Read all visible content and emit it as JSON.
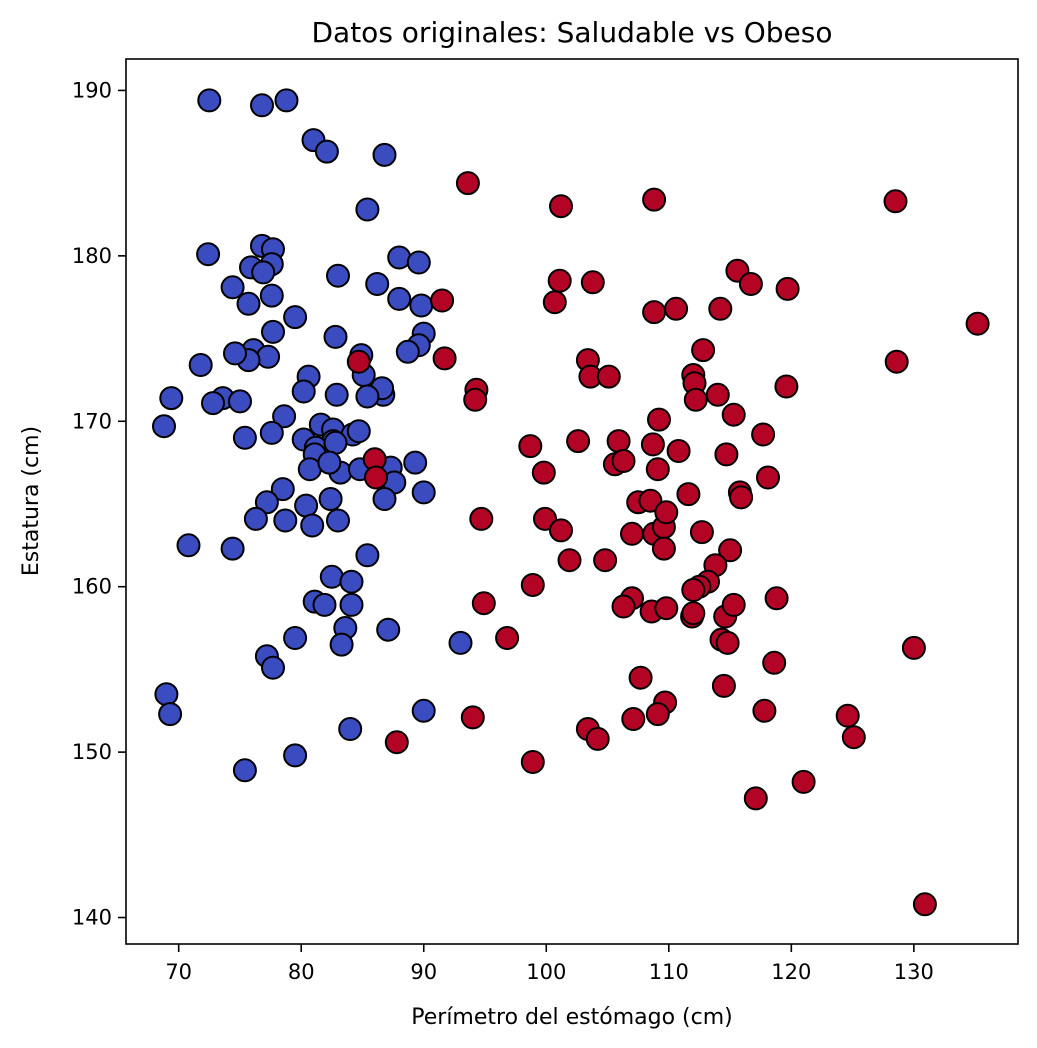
{
  "chart_data": {
    "type": "scatter",
    "title": "Datos originales: Saludable vs Obeso",
    "xlabel": "Perímetro del estómago (cm)",
    "ylabel": "Estatura (cm)",
    "xlim": [
      65.7,
      138.5
    ],
    "ylim": [
      138.4,
      191.9
    ],
    "xticks": [
      70,
      80,
      90,
      100,
      110,
      120,
      130
    ],
    "yticks": [
      140,
      150,
      160,
      170,
      180,
      190
    ],
    "grid": false,
    "legend": "none",
    "series": [
      {
        "color": "#3b4cc0",
        "points": [
          [
            72.5,
            189.4
          ],
          [
            76.8,
            189.1
          ],
          [
            78.8,
            189.4
          ],
          [
            81.0,
            187.0
          ],
          [
            82.1,
            186.3
          ],
          [
            86.8,
            186.1
          ],
          [
            85.4,
            182.8
          ],
          [
            72.4,
            180.1
          ],
          [
            76.8,
            180.6
          ],
          [
            77.7,
            180.4
          ],
          [
            75.9,
            179.3
          ],
          [
            77.6,
            179.5
          ],
          [
            76.9,
            179.0
          ],
          [
            88.0,
            179.9
          ],
          [
            89.6,
            179.6
          ],
          [
            83.0,
            178.8
          ],
          [
            86.2,
            178.3
          ],
          [
            74.4,
            178.1
          ],
          [
            77.6,
            177.6
          ],
          [
            75.7,
            177.1
          ],
          [
            88.0,
            177.4
          ],
          [
            89.8,
            177.0
          ],
          [
            79.5,
            176.3
          ],
          [
            77.7,
            175.4
          ],
          [
            82.8,
            175.1
          ],
          [
            90.0,
            175.3
          ],
          [
            89.6,
            174.6
          ],
          [
            88.7,
            174.2
          ],
          [
            76.1,
            174.3
          ],
          [
            77.3,
            173.9
          ],
          [
            75.7,
            173.7
          ],
          [
            74.6,
            174.1
          ],
          [
            71.8,
            173.4
          ],
          [
            84.9,
            174.0
          ],
          [
            85.1,
            172.8
          ],
          [
            80.6,
            172.7
          ],
          [
            80.2,
            171.8
          ],
          [
            86.7,
            171.6
          ],
          [
            86.6,
            172.0
          ],
          [
            85.4,
            171.5
          ],
          [
            82.9,
            171.6
          ],
          [
            69.4,
            171.4
          ],
          [
            73.6,
            171.4
          ],
          [
            72.8,
            171.1
          ],
          [
            75.0,
            171.2
          ],
          [
            78.6,
            170.3
          ],
          [
            68.8,
            169.7
          ],
          [
            75.4,
            169.0
          ],
          [
            77.6,
            169.3
          ],
          [
            80.2,
            168.9
          ],
          [
            81.6,
            169.8
          ],
          [
            82.6,
            169.5
          ],
          [
            84.2,
            169.2
          ],
          [
            84.7,
            169.4
          ],
          [
            82.6,
            168.8
          ],
          [
            81.2,
            168.4
          ],
          [
            81.1,
            168.0
          ],
          [
            82.8,
            168.7
          ],
          [
            83.2,
            166.9
          ],
          [
            80.7,
            167.1
          ],
          [
            82.3,
            167.5
          ],
          [
            84.8,
            167.1
          ],
          [
            87.3,
            167.2
          ],
          [
            89.3,
            167.5
          ],
          [
            87.6,
            166.3
          ],
          [
            86.8,
            165.3
          ],
          [
            90.0,
            165.7
          ],
          [
            78.5,
            165.9
          ],
          [
            77.2,
            165.1
          ],
          [
            82.4,
            165.3
          ],
          [
            80.4,
            164.9
          ],
          [
            76.3,
            164.1
          ],
          [
            78.7,
            164.0
          ],
          [
            80.9,
            163.7
          ],
          [
            83.0,
            164.0
          ],
          [
            70.8,
            162.5
          ],
          [
            74.4,
            162.3
          ],
          [
            85.4,
            161.9
          ],
          [
            82.5,
            160.6
          ],
          [
            84.1,
            160.3
          ],
          [
            81.1,
            159.1
          ],
          [
            81.9,
            158.9
          ],
          [
            84.1,
            158.9
          ],
          [
            83.6,
            157.5
          ],
          [
            87.1,
            157.4
          ],
          [
            83.3,
            156.5
          ],
          [
            79.5,
            156.9
          ],
          [
            77.2,
            155.8
          ],
          [
            77.7,
            155.1
          ],
          [
            93.0,
            156.6
          ],
          [
            69.0,
            153.5
          ],
          [
            69.3,
            152.3
          ],
          [
            90.0,
            152.5
          ],
          [
            84.0,
            151.4
          ],
          [
            79.5,
            149.8
          ],
          [
            75.4,
            148.9
          ]
        ]
      },
      {
        "color": "#b40426",
        "points": [
          [
            93.6,
            184.4
          ],
          [
            101.2,
            183.0
          ],
          [
            108.8,
            183.4
          ],
          [
            128.5,
            183.3
          ],
          [
            101.1,
            178.5
          ],
          [
            103.8,
            178.4
          ],
          [
            115.6,
            179.1
          ],
          [
            116.7,
            178.3
          ],
          [
            119.7,
            178.0
          ],
          [
            100.7,
            177.2
          ],
          [
            91.5,
            177.3
          ],
          [
            108.8,
            176.6
          ],
          [
            110.6,
            176.8
          ],
          [
            114.2,
            176.8
          ],
          [
            135.2,
            175.9
          ],
          [
            112.8,
            174.3
          ],
          [
            91.7,
            173.8
          ],
          [
            103.4,
            173.7
          ],
          [
            128.6,
            173.6
          ],
          [
            103.6,
            172.7
          ],
          [
            105.1,
            172.7
          ],
          [
            112.0,
            172.8
          ],
          [
            112.1,
            172.3
          ],
          [
            119.6,
            172.1
          ],
          [
            94.3,
            171.9
          ],
          [
            94.2,
            171.3
          ],
          [
            112.2,
            171.3
          ],
          [
            114.0,
            171.6
          ],
          [
            115.3,
            170.4
          ],
          [
            109.2,
            170.1
          ],
          [
            117.7,
            169.2
          ],
          [
            98.7,
            168.5
          ],
          [
            102.6,
            168.8
          ],
          [
            105.9,
            168.8
          ],
          [
            108.7,
            168.6
          ],
          [
            110.8,
            168.2
          ],
          [
            114.7,
            168.0
          ],
          [
            99.8,
            166.9
          ],
          [
            105.6,
            167.4
          ],
          [
            106.3,
            167.6
          ],
          [
            109.1,
            167.1
          ],
          [
            84.7,
            173.6
          ],
          [
            86.0,
            167.7
          ],
          [
            86.1,
            166.6
          ],
          [
            118.1,
            166.6
          ],
          [
            111.6,
            165.6
          ],
          [
            115.8,
            165.7
          ],
          [
            115.9,
            165.4
          ],
          [
            107.5,
            165.1
          ],
          [
            108.5,
            165.2
          ],
          [
            94.7,
            164.1
          ],
          [
            99.9,
            164.1
          ],
          [
            101.2,
            163.4
          ],
          [
            107.0,
            163.2
          ],
          [
            108.8,
            163.2
          ],
          [
            109.6,
            163.6
          ],
          [
            109.8,
            164.5
          ],
          [
            112.7,
            163.3
          ],
          [
            109.6,
            162.3
          ],
          [
            115.0,
            162.2
          ],
          [
            101.9,
            161.6
          ],
          [
            104.8,
            161.6
          ],
          [
            113.8,
            161.3
          ],
          [
            113.2,
            160.3
          ],
          [
            112.5,
            160.0
          ],
          [
            112.0,
            159.8
          ],
          [
            98.9,
            160.1
          ],
          [
            107.0,
            159.3
          ],
          [
            106.3,
            158.8
          ],
          [
            108.6,
            158.5
          ],
          [
            109.8,
            158.7
          ],
          [
            111.9,
            158.2
          ],
          [
            112.0,
            158.4
          ],
          [
            114.6,
            158.2
          ],
          [
            115.3,
            158.9
          ],
          [
            118.8,
            159.3
          ],
          [
            94.9,
            159.0
          ],
          [
            96.8,
            156.9
          ],
          [
            114.3,
            156.8
          ],
          [
            114.8,
            156.6
          ],
          [
            130.0,
            156.3
          ],
          [
            118.6,
            155.4
          ],
          [
            107.7,
            154.5
          ],
          [
            114.5,
            154.0
          ],
          [
            109.7,
            153.0
          ],
          [
            109.1,
            152.3
          ],
          [
            107.1,
            152.0
          ],
          [
            117.8,
            152.5
          ],
          [
            124.6,
            152.2
          ],
          [
            94.0,
            152.1
          ],
          [
            103.4,
            151.4
          ],
          [
            104.2,
            150.8
          ],
          [
            125.1,
            150.9
          ],
          [
            87.8,
            150.6
          ],
          [
            98.9,
            149.4
          ],
          [
            121.0,
            148.2
          ],
          [
            117.1,
            147.2
          ],
          [
            130.9,
            140.8
          ]
        ]
      }
    ]
  }
}
